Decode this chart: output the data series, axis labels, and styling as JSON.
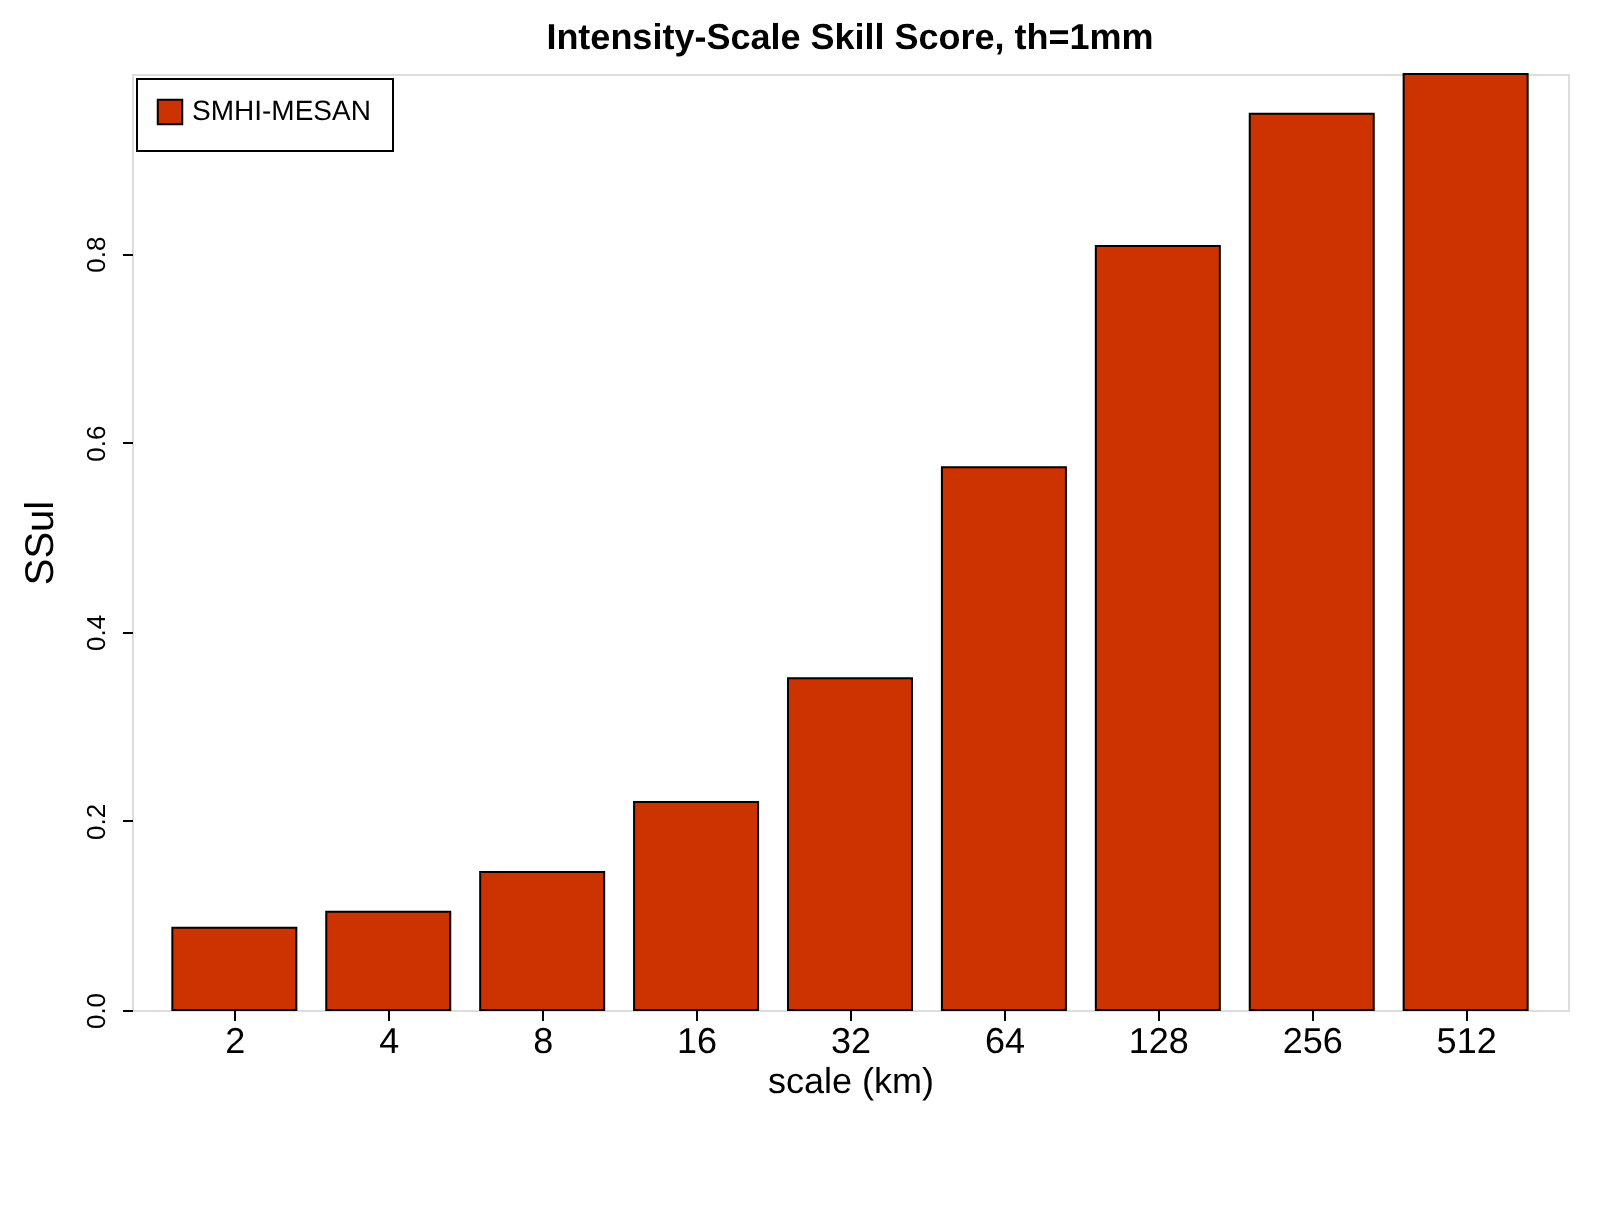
{
  "chart_data": {
    "type": "bar",
    "title": "Intensity-Scale Skill Score, th=1mm",
    "xlabel": "scale (km)",
    "ylabel": "SSul",
    "categories": [
      "2",
      "4",
      "8",
      "16",
      "32",
      "64",
      "128",
      "256",
      "512"
    ],
    "series": [
      {
        "name": "SMHI-MESAN",
        "color": "#cc3300",
        "values": [
          0.087,
          0.104,
          0.146,
          0.22,
          0.351,
          0.574,
          0.808,
          0.948,
          0.99
        ]
      }
    ],
    "ylim": [
      0,
      0.99
    ],
    "yticks": [
      {
        "value": 0,
        "label": "0.0"
      },
      {
        "value": 0.2,
        "label": "0.2"
      },
      {
        "value": 0.4,
        "label": "0.4"
      },
      {
        "value": 0.6,
        "label": "0.6"
      },
      {
        "value": 0.8,
        "label": "0.8"
      }
    ],
    "grid": false,
    "legend": "top left"
  }
}
